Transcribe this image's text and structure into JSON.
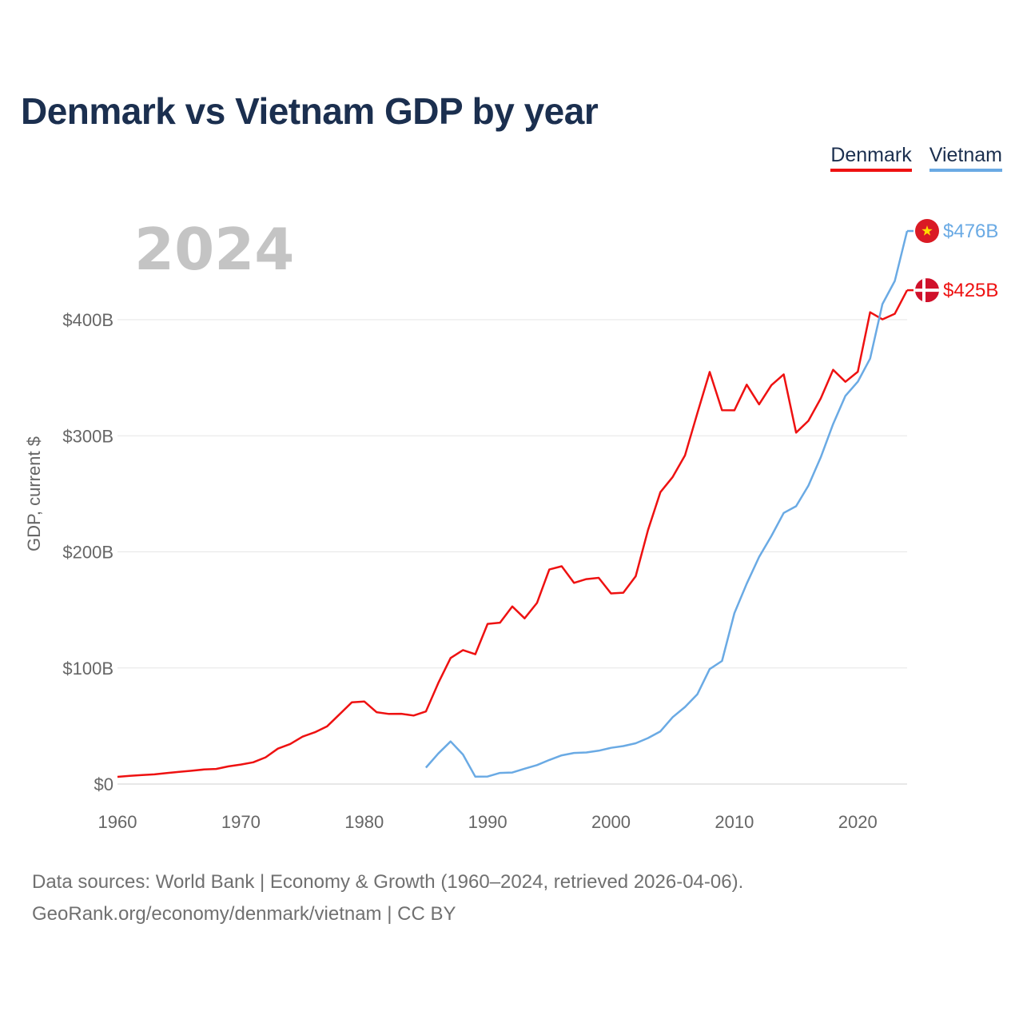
{
  "header": {
    "title": "Denmark vs Vietnam GDP by year"
  },
  "legend": [
    {
      "label": "Denmark",
      "color": "#ee1111"
    },
    {
      "label": "Vietnam",
      "color": "#6aaae4"
    }
  ],
  "year_watermark": "2024",
  "source": {
    "line1": "Data sources: World Bank | Economy & Growth (1960–2024, retrieved 2026-04-06).",
    "line2": "GeoRank.org/economy/denmark/vietnam | CC BY"
  },
  "chart_data": {
    "type": "line",
    "title": "Denmark vs Vietnam GDP by year",
    "xlabel": "",
    "ylabel": "GDP, current $",
    "xlim": [
      1960,
      2024
    ],
    "ylim": [
      0,
      400
    ],
    "value_unit": "billion USD",
    "x_ticks": [
      1960,
      1970,
      1980,
      1990,
      2000,
      2010,
      2020
    ],
    "y_ticks": [
      0,
      100,
      200,
      300,
      400
    ],
    "y_tick_labels": [
      "$0",
      "$100B",
      "$200B",
      "$300B",
      "$400B"
    ],
    "grid": true,
    "legend_position": "top-right",
    "series": [
      {
        "name": "Denmark",
        "color": "#ee1111",
        "flag_icon": "denmark-flag-icon",
        "end_label": "$425B",
        "x": [
          1960,
          1961,
          1962,
          1963,
          1964,
          1965,
          1966,
          1967,
          1968,
          1969,
          1970,
          1971,
          1972,
          1973,
          1974,
          1975,
          1976,
          1977,
          1978,
          1979,
          1980,
          1981,
          1982,
          1983,
          1984,
          1985,
          1986,
          1987,
          1988,
          1989,
          1990,
          1991,
          1992,
          1993,
          1994,
          1995,
          1996,
          1997,
          1998,
          1999,
          2000,
          2001,
          2002,
          2003,
          2004,
          2005,
          2006,
          2007,
          2008,
          2009,
          2010,
          2011,
          2012,
          2013,
          2014,
          2015,
          2016,
          2017,
          2018,
          2019,
          2020,
          2021,
          2022,
          2023,
          2024
        ],
        "values": [
          6.2,
          7,
          7.8,
          8.3,
          9.4,
          10.5,
          11.4,
          12.5,
          13,
          15.2,
          16.8,
          18.7,
          23,
          30.5,
          34.5,
          40.8,
          44.6,
          49.8,
          60.1,
          70.4,
          71.1,
          61.9,
          60.4,
          60.5,
          59,
          62.5,
          87,
          108.6,
          115.4,
          111.8,
          138,
          139,
          153,
          142.7,
          156,
          184.8,
          187.6,
          173.3,
          176.5,
          177.6,
          164.2,
          164.8,
          179,
          218.8,
          251.4,
          264.5,
          283.2,
          319.6,
          355,
          322,
          321.9,
          344,
          327.1,
          343.6,
          352.9,
          302.7,
          312.9,
          332.1,
          356.8,
          346.5,
          355.2,
          406.4,
          400.3,
          405.1,
          425.4
        ]
      },
      {
        "name": "Vietnam",
        "color": "#6aaae4",
        "flag_icon": "vietnam-flag-icon",
        "end_label": "$476B",
        "x": [
          1985,
          1986,
          1987,
          1988,
          1989,
          1990,
          1991,
          1992,
          1993,
          1994,
          1995,
          1996,
          1997,
          1998,
          1999,
          2000,
          2001,
          2002,
          2003,
          2004,
          2005,
          2006,
          2007,
          2008,
          2009,
          2010,
          2011,
          2012,
          2013,
          2014,
          2015,
          2016,
          2017,
          2018,
          2019,
          2020,
          2021,
          2022,
          2023,
          2024
        ],
        "values": [
          14.1,
          26.3,
          36.7,
          25.4,
          6.3,
          6.5,
          9.6,
          9.9,
          13.2,
          16.3,
          20.7,
          24.7,
          26.8,
          27.2,
          28.7,
          31.2,
          32.7,
          35.1,
          39.6,
          45.4,
          57.6,
          66.4,
          77.4,
          99.1,
          106,
          147.2,
          172.6,
          195.6,
          213.7,
          233.5,
          239.3,
          257.1,
          281.4,
          310.1,
          334.4,
          346.6,
          366.5,
          413.4,
          433.4,
          476.4
        ]
      }
    ]
  }
}
